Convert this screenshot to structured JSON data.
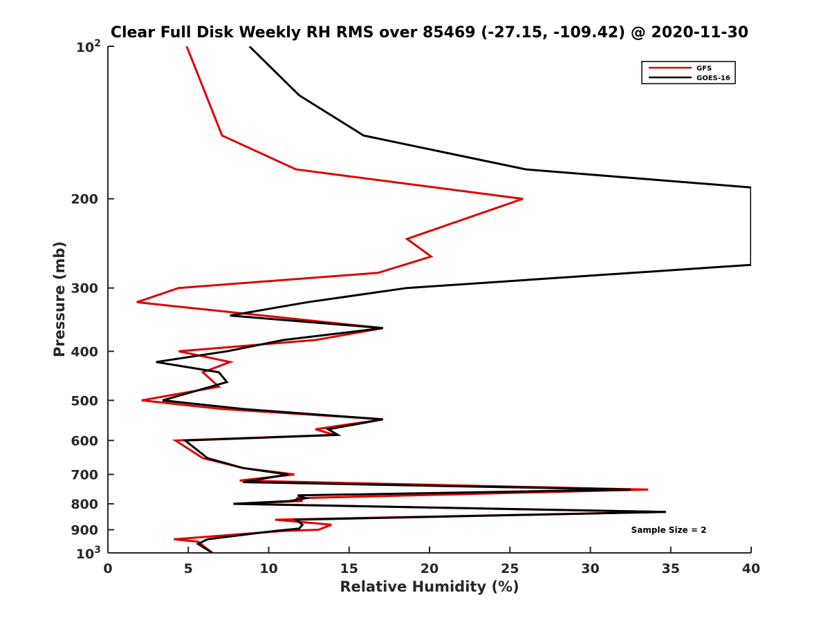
{
  "chart_data": {
    "type": "line",
    "title": "Clear Full Disk Weekly RH RMS over 85469 (-27.15, -109.42) @ 2020-11-30",
    "xlabel": "Relative Humidity (%)",
    "ylabel": "Pressure (mb)",
    "xlim": [
      0,
      40
    ],
    "ylim": [
      100,
      1000
    ],
    "yscale": "log",
    "y_reversed": true,
    "grid": false,
    "legend_position": "top-right",
    "x_ticks": [
      0,
      5,
      10,
      15,
      20,
      25,
      30,
      35,
      40
    ],
    "y_ticks": [
      {
        "value": 100,
        "base": "10",
        "exp": "2"
      },
      {
        "value": 200,
        "label": "200"
      },
      {
        "value": 300,
        "label": "300"
      },
      {
        "value": 400,
        "label": "400"
      },
      {
        "value": 500,
        "label": "500"
      },
      {
        "value": 600,
        "label": "600"
      },
      {
        "value": 700,
        "label": "700"
      },
      {
        "value": 800,
        "label": "800"
      },
      {
        "value": 900,
        "label": "900"
      },
      {
        "value": 1000,
        "base": "10",
        "exp": "3"
      }
    ],
    "annotation": "Sample Size = 2",
    "series": [
      {
        "name": "GFS",
        "color": "#e00000",
        "points": [
          [
            4.9,
            100
          ],
          [
            7.1,
            150
          ],
          [
            11.7,
            175
          ],
          [
            25.8,
            200
          ],
          [
            18.6,
            240
          ],
          [
            20.1,
            260
          ],
          [
            16.8,
            280
          ],
          [
            4.4,
            300
          ],
          [
            1.8,
            320
          ],
          [
            17.1,
            360
          ],
          [
            12.9,
            380
          ],
          [
            4.4,
            400
          ],
          [
            7.6,
            420
          ],
          [
            5.9,
            440
          ],
          [
            6.9,
            470
          ],
          [
            2.1,
            500
          ],
          [
            7.1,
            520
          ],
          [
            17.1,
            545
          ],
          [
            12.9,
            570
          ],
          [
            14.1,
            585
          ],
          [
            4.2,
            600
          ],
          [
            5.9,
            650
          ],
          [
            8.4,
            680
          ],
          [
            11.6,
            700
          ],
          [
            8.2,
            720
          ],
          [
            33.6,
            750
          ],
          [
            11.7,
            780
          ],
          [
            12.1,
            790
          ],
          [
            7.9,
            800
          ],
          [
            34.7,
            830
          ],
          [
            10.4,
            860
          ],
          [
            13.9,
            880
          ],
          [
            13.1,
            900
          ],
          [
            10.9,
            905
          ],
          [
            4.1,
            940
          ],
          [
            5.6,
            950
          ],
          [
            6.5,
            1000
          ]
        ]
      },
      {
        "name": "GOES-16",
        "color": "#000000",
        "points": [
          [
            8.8,
            100
          ],
          [
            11.9,
            125
          ],
          [
            15.9,
            150
          ],
          [
            26.0,
            175
          ],
          [
            40.0,
            190
          ],
          [
            40.0,
            270
          ],
          [
            18.6,
            300
          ],
          [
            12.4,
            320
          ],
          [
            7.6,
            340
          ],
          [
            17.1,
            360
          ],
          [
            10.9,
            380
          ],
          [
            7.4,
            400
          ],
          [
            3.0,
            420
          ],
          [
            6.9,
            440
          ],
          [
            7.4,
            460
          ],
          [
            3.4,
            500
          ],
          [
            8.4,
            520
          ],
          [
            17.1,
            545
          ],
          [
            13.7,
            570
          ],
          [
            14.3,
            585
          ],
          [
            4.8,
            600
          ],
          [
            6.2,
            650
          ],
          [
            8.4,
            680
          ],
          [
            11.2,
            700
          ],
          [
            8.4,
            725
          ],
          [
            32.5,
            750
          ],
          [
            11.8,
            770
          ],
          [
            12.3,
            780
          ],
          [
            11.3,
            790
          ],
          [
            7.8,
            800
          ],
          [
            34.7,
            830
          ],
          [
            11.7,
            860
          ],
          [
            12.1,
            880
          ],
          [
            11.9,
            895
          ],
          [
            10.4,
            905
          ],
          [
            6.2,
            940
          ],
          [
            5.6,
            960
          ],
          [
            6.5,
            1000
          ]
        ]
      }
    ]
  }
}
